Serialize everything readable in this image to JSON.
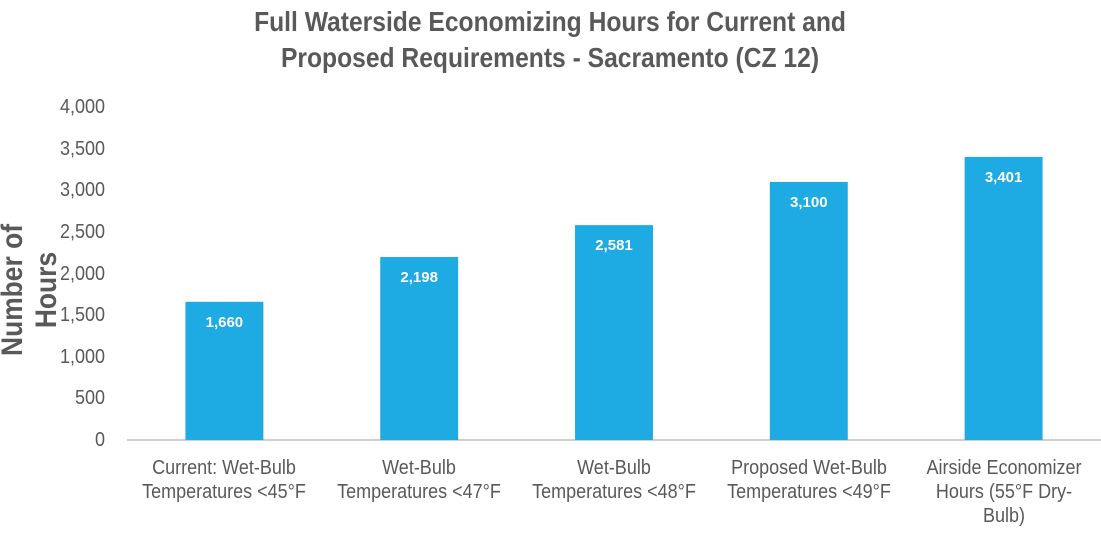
{
  "chart_data": {
    "type": "bar",
    "title": "Full Waterside Economizing Hours for Current and Proposed Requirements - Sacramento (CZ 12)",
    "y_label": "Number of Hours",
    "categories": [
      "Current: Wet-Bulb Temperatures <45°F",
      "Wet-Bulb Temperatures <47°F",
      "Wet-Bulb Temperatures <48°F",
      "Proposed Wet-Bulb Temperatures <49°F",
      "Airside Economizer Hours (55°F Dry-Bulb)"
    ],
    "values": [
      1660,
      2198,
      2581,
      3100,
      3401
    ],
    "value_labels": [
      "1,660",
      "2,198",
      "2,581",
      "3,100",
      "3,401"
    ],
    "color": "#1eaae2",
    "ylim": [
      0,
      4000
    ],
    "yticks": [
      0,
      500,
      {
        "value": 1000,
        "label": "1,000"
      },
      {
        "value": 1500,
        "label": "1,500"
      },
      {
        "value": 2000,
        "label": "2,000"
      },
      {
        "value": 2500,
        "label": "2,500"
      },
      {
        "value": 3000,
        "label": "3,000"
      },
      {
        "value": 3500,
        "label": "3,500"
      },
      {
        "value": 4000,
        "label": "4,000"
      }
    ],
    "grid": false
  }
}
